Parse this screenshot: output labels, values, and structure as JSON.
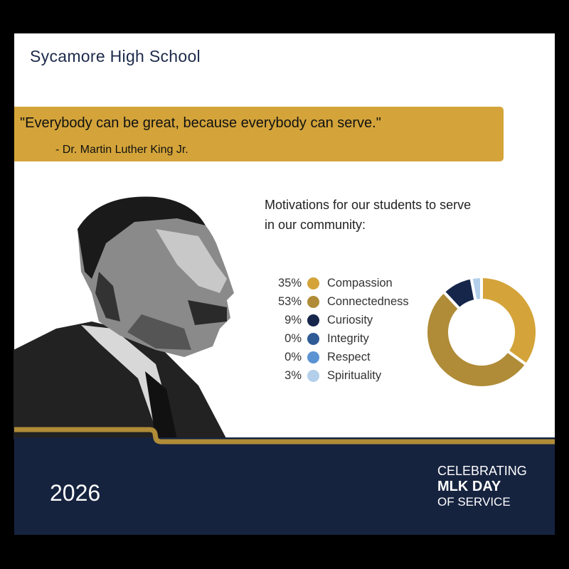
{
  "header": {
    "school_name": "Sycamore High School"
  },
  "quote": {
    "text": "\"Everybody can be great, because everybody can serve.\"",
    "attribution": "- Dr. Martin Luther King Jr."
  },
  "chart_data": {
    "type": "pie",
    "donut": true,
    "title": "Motivations for our students to serve in our community:",
    "legend_position": "left",
    "categories": [
      "Compassion",
      "Connectedness",
      "Curiosity",
      "Integrity",
      "Respect",
      "Spirituality"
    ],
    "values": [
      35,
      53,
      9,
      0,
      0,
      3
    ],
    "labels": [
      "35%",
      "53%",
      "9%",
      "0%",
      "0%",
      "3%"
    ],
    "colors": [
      "#d4a43a",
      "#b08c38",
      "#15264a",
      "#2f5b95",
      "#5b93d3",
      "#b3cfea"
    ]
  },
  "footer": {
    "year": "2026",
    "line1": "CELEBRATING",
    "line2": "MLK DAY",
    "line3": "OF SERVICE"
  },
  "colors": {
    "navy": "#16233f",
    "gold": "#d4a43a",
    "gold_dark": "#b08c38"
  }
}
